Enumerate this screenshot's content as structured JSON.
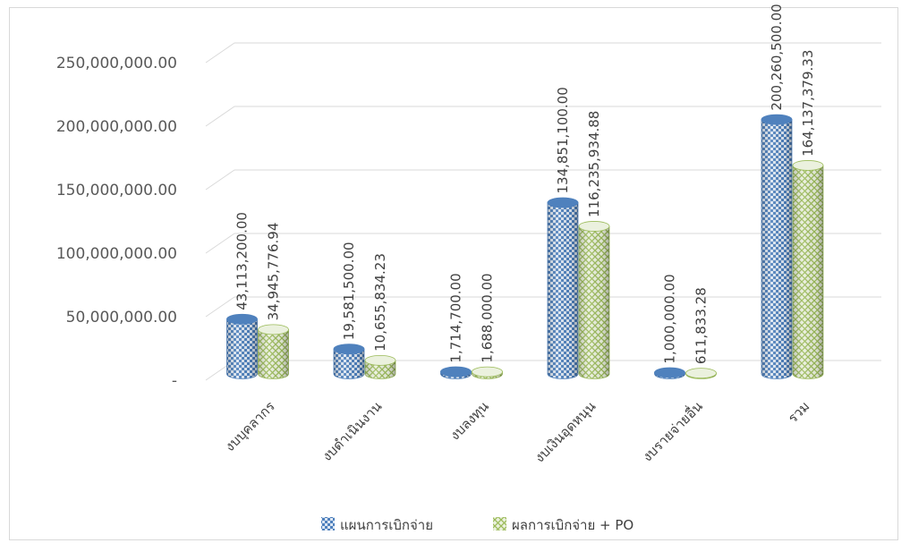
{
  "chart_data": {
    "type": "bar",
    "categories": [
      "งบบุคลากร",
      "งบดำเนินงาน",
      "งบลงทุน",
      "งบเงินอุดหนุน",
      "งบรายจ่ายอื่น",
      "รวม"
    ],
    "series": [
      {
        "name": "แผนการเบิกจ่าย",
        "values": [
          43113200.0,
          19581500.0,
          1714700.0,
          134851100.0,
          1000000.0,
          200260500.0
        ],
        "labels": [
          "43,113,200.00",
          "19,581,500.00",
          "1,714,700.00",
          "134,851,100.00",
          "1,000,000.00",
          "200,260,500.00"
        ]
      },
      {
        "name": "ผลการเบิกจ่าย + PO",
        "values": [
          34945776.94,
          10655834.23,
          1688000.0,
          116235934.88,
          611833.28,
          164137379.33
        ],
        "labels": [
          "34,945,776.94",
          "10,655,834.23",
          "1,688,000.00",
          "116,235,934.88",
          "611,833.28",
          "164,137,379.33"
        ]
      }
    ],
    "y_ticks": [
      0,
      50000000,
      100000000,
      150000000,
      200000000,
      250000000
    ],
    "y_tick_labels": [
      "-",
      "50,000,000.00",
      "100,000,000.00",
      "150,000,000.00",
      "200,000,000.00",
      "250,000,000.00"
    ],
    "ylim": [
      0,
      250000000
    ],
    "grid": true,
    "legend_position": "bottom",
    "colors": {
      "series1_main": "#4f81bd",
      "series1_light": "#c6d9f1",
      "series2_main": "#9bbb59",
      "series2_light": "#ebf1de",
      "grid": "#d9d9d9"
    }
  }
}
